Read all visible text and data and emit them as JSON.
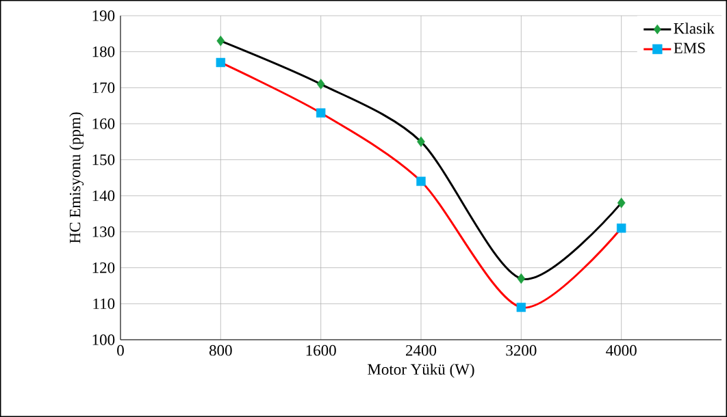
{
  "chart_data": {
    "type": "line",
    "xlabel": "Motor Yükü (W)",
    "ylabel": "HC Emisyonu (ppm)",
    "x": [
      800,
      1600,
      2400,
      3200,
      4000
    ],
    "series": [
      {
        "name": "Klasik",
        "color": "#000000",
        "colors": [
          "#1fa040",
          "#1fa040",
          "#1fa040",
          "#1fa040",
          "#1fa040"
        ],
        "marker": "diamond",
        "values": [
          183,
          171,
          155,
          117,
          138
        ]
      },
      {
        "name": "EMS",
        "color": "#ff0000",
        "colors": [
          "#00b0f0",
          "#00b0f0",
          "#00b0f0",
          "#00b0f0",
          "#00b0f0"
        ],
        "marker": "square",
        "values": [
          177,
          163,
          144,
          109,
          131
        ]
      }
    ],
    "xlim": [
      0,
      4800
    ],
    "ylim": [
      100,
      190
    ],
    "xticks": [
      0,
      800,
      1600,
      2400,
      3200,
      4000
    ],
    "yticks": [
      100,
      110,
      120,
      130,
      140,
      150,
      160,
      170,
      180,
      190
    ],
    "grid": true,
    "legend": "top right",
    "line_style": "solid"
  }
}
